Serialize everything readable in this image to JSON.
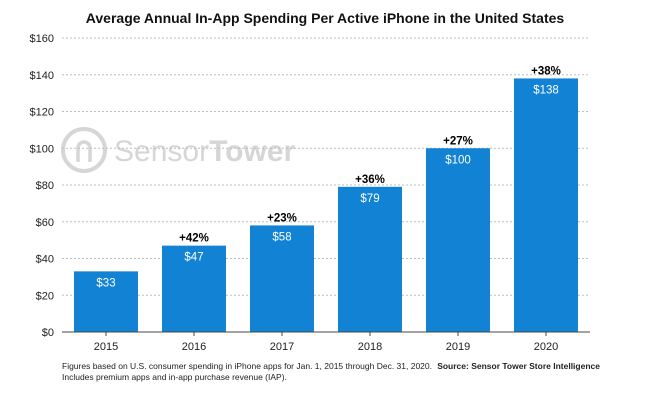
{
  "colors": {
    "bar": "#1283d4",
    "grid": "#bdbdbd",
    "axis": "#444444",
    "watermark": "#d6d6d6"
  },
  "watermark": {
    "brand_light": "Sensor",
    "brand_bold": "Tower",
    "icon": "sensor-tower-logo-icon"
  },
  "footnote": "Figures based on U.S. consumer spending in iPhone apps for Jan. 1, 2015 through Dec. 31, 2020. Includes premium apps and in-app purchase revenue (IAP).",
  "source": "Source: Sensor Tower Store Intelligence",
  "chart_data": {
    "type": "bar",
    "title": "Average Annual In-App Spending Per Active iPhone in the United States",
    "categories": [
      "2015",
      "2016",
      "2017",
      "2018",
      "2019",
      "2020"
    ],
    "values": [
      33,
      47,
      58,
      79,
      100,
      138
    ],
    "value_labels": [
      "$33",
      "$47",
      "$58",
      "$79",
      "$100",
      "$138"
    ],
    "growth_labels": [
      "",
      "+42%",
      "+23%",
      "+36%",
      "+27%",
      "+38%"
    ],
    "yticks": [
      0,
      20,
      40,
      60,
      80,
      100,
      120,
      140,
      160
    ],
    "ytick_labels": [
      "$0",
      "$20",
      "$40",
      "$60",
      "$80",
      "$100",
      "$120",
      "$140",
      "$160"
    ],
    "ylim": [
      0,
      160
    ],
    "grid": true,
    "legend": "none"
  }
}
